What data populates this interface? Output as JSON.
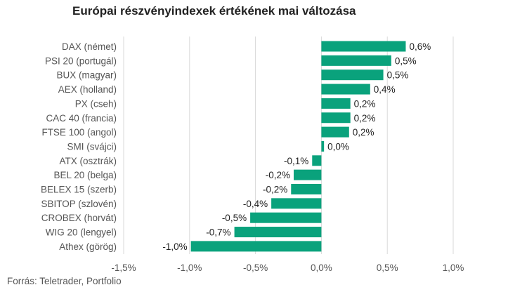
{
  "title": "Európai részvényindexek értékének mai változása",
  "source": "Forrás: Teletrader, Portfolio",
  "colors": {
    "bar": "#0aa27c",
    "grid": "#d9d9d9",
    "text": "#555555",
    "label": "#222222"
  },
  "chart_data": {
    "type": "bar",
    "orientation": "horizontal",
    "categories": [
      "DAX (német)",
      "PSI 20 (portugál)",
      "BUX (magyar)",
      "AEX (holland)",
      "PX (cseh)",
      "CAC 40 (francia)",
      "FTSE 100 (angol)",
      "SMI (svájci)",
      "ATX (osztrák)",
      "BEL 20 (belga)",
      "BELEX 15 (szerb)",
      "SBITOP (szlovén)",
      "CROBEX (horvát)",
      "WIG 20 (lengyel)",
      "Athex (görög)"
    ],
    "values": [
      0.64,
      0.53,
      0.47,
      0.37,
      0.22,
      0.22,
      0.21,
      0.02,
      -0.07,
      -0.21,
      -0.23,
      -0.38,
      -0.54,
      -0.66,
      -0.99
    ],
    "data_labels": [
      "0,6%",
      "0,5%",
      "0,5%",
      "0,4%",
      "0,2%",
      "0,2%",
      "0,2%",
      "0,0%",
      "-0,1%",
      "-0,2%",
      "-0,2%",
      "-0,4%",
      "-0,5%",
      "-0,7%",
      "-1,0%"
    ],
    "xlim": [
      -1.5,
      1.0
    ],
    "xticks": [
      -1.5,
      -1.0,
      -0.5,
      0.0,
      0.5,
      1.0
    ],
    "xtick_labels": [
      "-1,5%",
      "-1,0%",
      "-0,5%",
      "0,0%",
      "0,5%",
      "1,0%"
    ],
    "grid": true,
    "legend": false
  }
}
